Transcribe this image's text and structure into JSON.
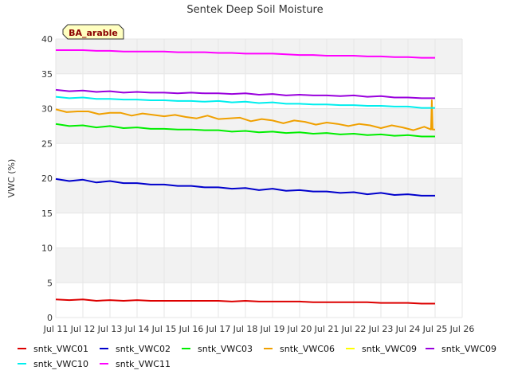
{
  "chart_data": {
    "type": "line",
    "title": "Sentek Deep Soil Moisture",
    "xlabel": "",
    "ylabel": "VWC (%)",
    "badge": "BA_arable",
    "xlim": [
      11,
      26
    ],
    "ylim": [
      0,
      40
    ],
    "x_ticks": [
      {
        "value": 11,
        "label": "Jul 11"
      },
      {
        "value": 12,
        "label": "Jul 12"
      },
      {
        "value": 13,
        "label": "Jul 13"
      },
      {
        "value": 14,
        "label": "Jul 14"
      },
      {
        "value": 15,
        "label": "Jul 15"
      },
      {
        "value": 16,
        "label": "Jul 16"
      },
      {
        "value": 17,
        "label": "Jul 17"
      },
      {
        "value": 18,
        "label": "Jul 18"
      },
      {
        "value": 19,
        "label": "Jul 19"
      },
      {
        "value": 20,
        "label": "Jul 20"
      },
      {
        "value": 21,
        "label": "Jul 21"
      },
      {
        "value": 22,
        "label": "Jul 22"
      },
      {
        "value": 23,
        "label": "Jul 23"
      },
      {
        "value": 24,
        "label": "Jul 24"
      },
      {
        "value": 25,
        "label": "Jul 25"
      },
      {
        "value": 26,
        "label": "Jul 26"
      }
    ],
    "y_ticks": [
      0,
      5,
      10,
      15,
      20,
      25,
      30,
      35,
      40
    ],
    "grid": true,
    "legend_position": "bottom",
    "series": [
      {
        "name": "sntk_VWC01",
        "color": "#dd0000",
        "x": [
          11.0,
          11.5,
          12.0,
          12.5,
          13.0,
          13.5,
          14.0,
          14.5,
          15.0,
          15.5,
          16.0,
          16.5,
          17.0,
          17.5,
          18.0,
          18.5,
          19.0,
          19.5,
          20.0,
          20.5,
          21.0,
          21.5,
          22.0,
          22.5,
          23.0,
          23.5,
          24.0,
          24.5,
          24.8,
          25.0
        ],
        "y": [
          2.6,
          2.5,
          2.6,
          2.4,
          2.5,
          2.4,
          2.5,
          2.4,
          2.4,
          2.4,
          2.4,
          2.4,
          2.4,
          2.3,
          2.4,
          2.3,
          2.3,
          2.3,
          2.3,
          2.2,
          2.2,
          2.2,
          2.2,
          2.2,
          2.1,
          2.1,
          2.1,
          2.0,
          2.0,
          2.0
        ]
      },
      {
        "name": "sntk_VWC02",
        "color": "#0000cc",
        "x": [
          11.0,
          11.5,
          12.0,
          12.5,
          13.0,
          13.5,
          14.0,
          14.5,
          15.0,
          15.5,
          16.0,
          16.5,
          17.0,
          17.5,
          18.0,
          18.5,
          19.0,
          19.5,
          20.0,
          20.5,
          21.0,
          21.5,
          22.0,
          22.5,
          23.0,
          23.5,
          24.0,
          24.5,
          25.0
        ],
        "y": [
          19.9,
          19.6,
          19.8,
          19.4,
          19.6,
          19.3,
          19.3,
          19.1,
          19.1,
          18.9,
          18.9,
          18.7,
          18.7,
          18.5,
          18.6,
          18.3,
          18.5,
          18.2,
          18.3,
          18.1,
          18.1,
          17.9,
          18.0,
          17.7,
          17.9,
          17.6,
          17.7,
          17.5,
          17.5
        ]
      },
      {
        "name": "sntk_VWC03",
        "color": "#00ee00",
        "x": [
          11.0,
          11.5,
          12.0,
          12.5,
          13.0,
          13.5,
          14.0,
          14.5,
          15.0,
          15.5,
          16.0,
          16.5,
          17.0,
          17.5,
          18.0,
          18.5,
          19.0,
          19.5,
          20.0,
          20.5,
          21.0,
          21.5,
          22.0,
          22.5,
          23.0,
          23.5,
          24.0,
          24.5,
          25.0
        ],
        "y": [
          27.8,
          27.5,
          27.6,
          27.3,
          27.5,
          27.2,
          27.3,
          27.1,
          27.1,
          27.0,
          27.0,
          26.9,
          26.9,
          26.7,
          26.8,
          26.6,
          26.7,
          26.5,
          26.6,
          26.4,
          26.5,
          26.3,
          26.4,
          26.2,
          26.3,
          26.1,
          26.2,
          26.0,
          26.0
        ]
      },
      {
        "name": "sntk_VWC06",
        "color": "#f0a000",
        "x": [
          11.0,
          11.4,
          11.8,
          12.2,
          12.6,
          13.0,
          13.4,
          13.8,
          14.2,
          14.6,
          15.0,
          15.4,
          15.8,
          16.2,
          16.6,
          17.0,
          17.4,
          17.8,
          18.2,
          18.6,
          19.0,
          19.4,
          19.8,
          20.2,
          20.6,
          21.0,
          21.4,
          21.8,
          22.2,
          22.6,
          23.0,
          23.4,
          23.8,
          24.2,
          24.6,
          24.85,
          24.88,
          24.91,
          25.0
        ],
        "y": [
          29.9,
          29.5,
          29.6,
          29.6,
          29.2,
          29.4,
          29.4,
          29.0,
          29.3,
          29.1,
          28.9,
          29.1,
          28.8,
          28.6,
          29.0,
          28.5,
          28.6,
          28.7,
          28.2,
          28.5,
          28.3,
          27.9,
          28.3,
          28.1,
          27.7,
          28.0,
          27.8,
          27.5,
          27.8,
          27.6,
          27.2,
          27.6,
          27.3,
          26.9,
          27.4,
          27.0,
          31.2,
          27.0,
          27.0
        ]
      },
      {
        "name": "sntk_VWC09",
        "color": "#ffff00",
        "x": [],
        "y": []
      },
      {
        "name": "sntk_VWC09",
        "color": "#9900dd",
        "x": [
          11.0,
          11.5,
          12.0,
          12.5,
          13.0,
          13.5,
          14.0,
          14.5,
          15.0,
          15.5,
          16.0,
          16.5,
          17.0,
          17.5,
          18.0,
          18.5,
          19.0,
          19.5,
          20.0,
          20.5,
          21.0,
          21.5,
          22.0,
          22.5,
          23.0,
          23.5,
          24.0,
          24.5,
          25.0
        ],
        "y": [
          32.7,
          32.5,
          32.6,
          32.4,
          32.5,
          32.3,
          32.4,
          32.3,
          32.3,
          32.2,
          32.3,
          32.2,
          32.2,
          32.1,
          32.2,
          32.0,
          32.1,
          31.9,
          32.0,
          31.9,
          31.9,
          31.8,
          31.9,
          31.7,
          31.8,
          31.6,
          31.6,
          31.5,
          31.5
        ]
      },
      {
        "name": "sntk_VWC10",
        "color": "#00eeee",
        "x": [
          11.0,
          11.5,
          12.0,
          12.5,
          13.0,
          13.5,
          14.0,
          14.5,
          15.0,
          15.5,
          16.0,
          16.5,
          17.0,
          17.5,
          18.0,
          18.5,
          19.0,
          19.5,
          20.0,
          20.5,
          21.0,
          21.5,
          22.0,
          22.5,
          23.0,
          23.5,
          24.0,
          24.5,
          25.0
        ],
        "y": [
          31.7,
          31.5,
          31.6,
          31.4,
          31.4,
          31.3,
          31.3,
          31.2,
          31.2,
          31.1,
          31.1,
          31.0,
          31.1,
          30.9,
          31.0,
          30.8,
          30.9,
          30.7,
          30.7,
          30.6,
          30.6,
          30.5,
          30.5,
          30.4,
          30.4,
          30.3,
          30.3,
          30.1,
          30.1
        ]
      },
      {
        "name": "sntk_VWC11",
        "color": "#ff00ff",
        "x": [
          11.0,
          11.5,
          12.0,
          12.5,
          13.0,
          13.5,
          14.0,
          14.5,
          15.0,
          15.5,
          16.0,
          16.5,
          17.0,
          17.5,
          18.0,
          18.5,
          19.0,
          19.5,
          20.0,
          20.5,
          21.0,
          21.5,
          22.0,
          22.5,
          23.0,
          23.5,
          24.0,
          24.5,
          25.0
        ],
        "y": [
          38.4,
          38.4,
          38.4,
          38.3,
          38.3,
          38.2,
          38.2,
          38.2,
          38.2,
          38.1,
          38.1,
          38.1,
          38.0,
          38.0,
          37.9,
          37.9,
          37.9,
          37.8,
          37.7,
          37.7,
          37.6,
          37.6,
          37.6,
          37.5,
          37.5,
          37.4,
          37.4,
          37.3,
          37.3
        ]
      }
    ]
  }
}
